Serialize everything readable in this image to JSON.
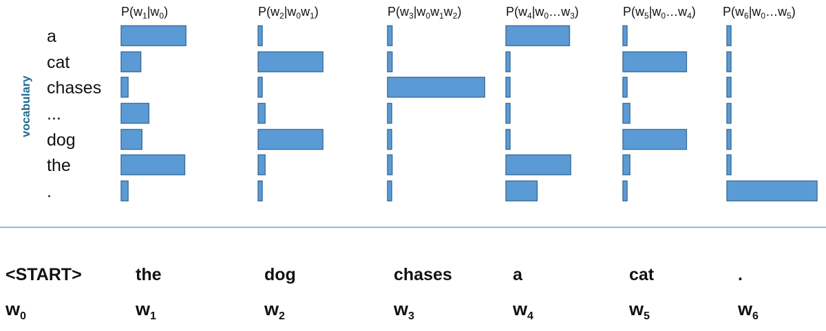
{
  "axis_label": "vocabulary",
  "vocabulary": [
    "a",
    "cat",
    "chases",
    "...",
    "dog",
    "the",
    "."
  ],
  "distributions": [
    {
      "title_parts": [
        [
          "P(w",
          ""
        ],
        [
          "1",
          "sub"
        ],
        [
          "|w",
          ""
        ],
        [
          "0",
          "sub"
        ],
        [
          ")",
          ""
        ]
      ],
      "probs": [
        0.56,
        0.17,
        0.06,
        0.24,
        0.18,
        0.55,
        0.06
      ]
    },
    {
      "title_parts": [
        [
          "P(w",
          ""
        ],
        [
          "2",
          "sub"
        ],
        [
          "|w",
          ""
        ],
        [
          "0",
          "sub"
        ],
        [
          "w",
          ""
        ],
        [
          "1",
          "sub"
        ],
        [
          ")",
          ""
        ]
      ],
      "probs": [
        0.03,
        0.56,
        0.03,
        0.06,
        0.56,
        0.06,
        0.03
      ]
    },
    {
      "title_parts": [
        [
          "P(w",
          ""
        ],
        [
          "3",
          "sub"
        ],
        [
          "|w",
          ""
        ],
        [
          "0",
          "sub"
        ],
        [
          "w",
          ""
        ],
        [
          "1",
          "sub"
        ],
        [
          "w",
          ""
        ],
        [
          "2",
          "sub"
        ],
        [
          ")",
          ""
        ]
      ],
      "probs": [
        0.04,
        0.04,
        0.84,
        0.03,
        0.03,
        0.04,
        0.03
      ]
    },
    {
      "title_parts": [
        [
          "P(w",
          ""
        ],
        [
          "4",
          "sub"
        ],
        [
          "|w",
          ""
        ],
        [
          "0",
          "sub"
        ],
        [
          "…w",
          ""
        ],
        [
          "3",
          "sub"
        ],
        [
          ")",
          ""
        ]
      ],
      "probs": [
        0.55,
        0.02,
        0.03,
        0.03,
        0.03,
        0.56,
        0.27
      ]
    },
    {
      "title_parts": [
        [
          "P(w",
          ""
        ],
        [
          "5",
          "sub"
        ],
        [
          "|w",
          ""
        ],
        [
          "0",
          "sub"
        ],
        [
          "…w",
          ""
        ],
        [
          "4",
          "sub"
        ],
        [
          ")",
          ""
        ]
      ],
      "probs": [
        0.03,
        0.55,
        0.03,
        0.06,
        0.55,
        0.06,
        0.03
      ]
    },
    {
      "title_parts": [
        [
          "P(w",
          ""
        ],
        [
          "6",
          "sub"
        ],
        [
          "|w",
          ""
        ],
        [
          "0",
          "sub"
        ],
        [
          "…w",
          ""
        ],
        [
          "5",
          "sub"
        ],
        [
          ")",
          ""
        ]
      ],
      "probs": [
        0.03,
        0.03,
        0.03,
        0.03,
        0.03,
        0.03,
        0.78
      ]
    }
  ],
  "tokens": [
    {
      "word": "<START>",
      "w": "w",
      "index": "0"
    },
    {
      "word": "the",
      "w": "w",
      "index": "1"
    },
    {
      "word": "dog",
      "w": "w",
      "index": "2"
    },
    {
      "word": "chases",
      "w": "w",
      "index": "3"
    },
    {
      "word": "a",
      "w": "w",
      "index": "4"
    },
    {
      "word": "cat",
      "w": "w",
      "index": "5"
    },
    {
      "word": ".",
      "w": "w",
      "index": "6"
    }
  ],
  "colors": {
    "bar_fill": "#5b9bd5",
    "bar_stroke": "#41719c",
    "axis_label": "#1f6b8f",
    "divider": "#6f9fd0"
  }
}
